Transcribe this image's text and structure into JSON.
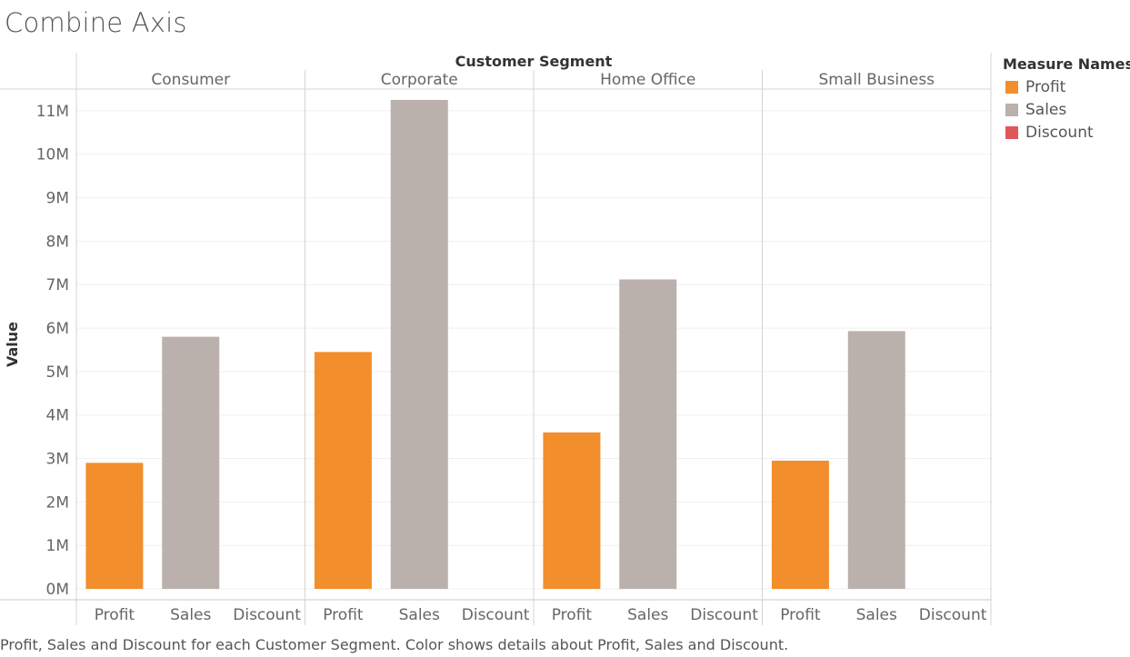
{
  "title": "Combine Axis",
  "caption": "Profit, Sales and Discount for each Customer Segment.  Color shows details about Profit, Sales and Discount.",
  "legend": {
    "title": "Measure Names",
    "items": [
      {
        "label": "Profit",
        "color": "#f28e2b"
      },
      {
        "label": "Sales",
        "color": "#bab0ac"
      },
      {
        "label": "Discount",
        "color": "#e15759"
      }
    ]
  },
  "chart_data": {
    "type": "bar",
    "column_header": "Customer Segment",
    "ylabel": "Value",
    "ylim": [
      -0.25,
      11.5
    ],
    "yticks": [
      0,
      1,
      2,
      3,
      4,
      5,
      6,
      7,
      8,
      9,
      10,
      11
    ],
    "ytick_labels": [
      "0M",
      "1M",
      "2M",
      "3M",
      "4M",
      "5M",
      "6M",
      "7M",
      "8M",
      "9M",
      "10M",
      "11M"
    ],
    "grid": true,
    "measures": [
      "Profit",
      "Sales",
      "Discount"
    ],
    "colors": {
      "Profit": "#f28e2b",
      "Sales": "#bab0ac",
      "Discount": "#e15759"
    },
    "panels": [
      {
        "segment": "Consumer",
        "values": {
          "Profit": 2.9,
          "Sales": 5.8,
          "Discount": 0
        }
      },
      {
        "segment": "Corporate",
        "values": {
          "Profit": 5.45,
          "Sales": 11.25,
          "Discount": 0
        }
      },
      {
        "segment": "Home Office",
        "values": {
          "Profit": 3.6,
          "Sales": 7.12,
          "Discount": 0
        }
      },
      {
        "segment": "Small Business",
        "values": {
          "Profit": 2.95,
          "Sales": 5.93,
          "Discount": 0
        }
      }
    ]
  }
}
